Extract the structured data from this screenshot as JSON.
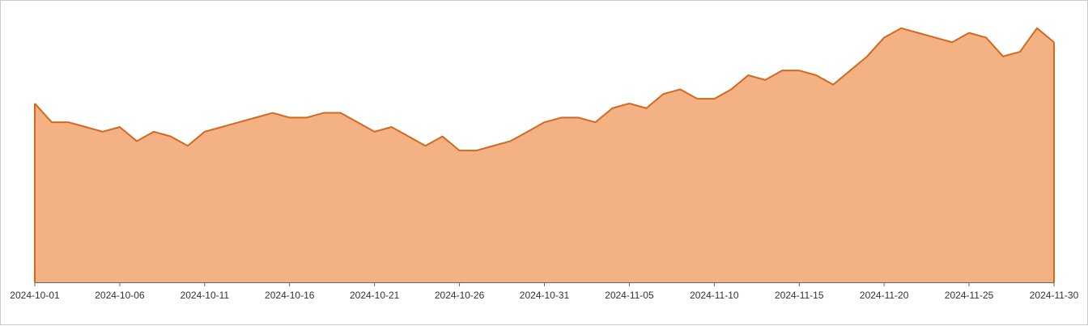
{
  "colors": {
    "area_fill": "#f4b183",
    "line": "#d2691e",
    "axis": "#666666",
    "border": "#cccccc",
    "text": "#333333"
  },
  "chart_data": {
    "type": "area",
    "title": "",
    "xlabel": "",
    "ylabel": "",
    "x_tick_labels": [
      "2024-10-01",
      "2024-10-06",
      "2024-10-11",
      "2024-10-16",
      "2024-10-21",
      "2024-10-26",
      "2024-10-31",
      "2024-11-05",
      "2024-11-10",
      "2024-11-15",
      "2024-11-20",
      "2024-11-25",
      "2024-11-30"
    ],
    "ylim": [
      0,
      55
    ],
    "y_axis_visible": false,
    "grid": false,
    "legend": "none",
    "x": [
      "2024-10-01",
      "2024-10-02",
      "2024-10-03",
      "2024-10-04",
      "2024-10-05",
      "2024-10-06",
      "2024-10-07",
      "2024-10-08",
      "2024-10-09",
      "2024-10-10",
      "2024-10-11",
      "2024-10-12",
      "2024-10-13",
      "2024-10-14",
      "2024-10-15",
      "2024-10-16",
      "2024-10-17",
      "2024-10-18",
      "2024-10-19",
      "2024-10-20",
      "2024-10-21",
      "2024-10-22",
      "2024-10-23",
      "2024-10-24",
      "2024-10-25",
      "2024-10-26",
      "2024-10-27",
      "2024-10-28",
      "2024-10-29",
      "2024-10-30",
      "2024-10-31",
      "2024-11-01",
      "2024-11-02",
      "2024-11-03",
      "2024-11-04",
      "2024-11-05",
      "2024-11-06",
      "2024-11-07",
      "2024-11-08",
      "2024-11-09",
      "2024-11-10",
      "2024-11-11",
      "2024-11-12",
      "2024-11-13",
      "2024-11-14",
      "2024-11-15",
      "2024-11-16",
      "2024-11-17",
      "2024-11-18",
      "2024-11-19",
      "2024-11-20",
      "2024-11-21",
      "2024-11-22",
      "2024-11-23",
      "2024-11-24",
      "2024-11-25",
      "2024-11-26",
      "2024-11-27",
      "2024-11-28",
      "2024-11-29",
      "2024-11-30"
    ],
    "values": [
      38,
      34,
      34,
      33,
      32,
      33,
      30,
      32,
      31,
      29,
      32,
      33,
      34,
      35,
      36,
      35,
      35,
      36,
      36,
      34,
      32,
      33,
      31,
      29,
      31,
      28,
      28,
      29,
      30,
      32,
      34,
      35,
      35,
      34,
      37,
      38,
      37,
      40,
      41,
      39,
      39,
      41,
      44,
      43,
      45,
      45,
      44,
      42,
      45,
      48,
      52,
      54,
      53,
      52,
      51,
      53,
      52,
      48,
      49,
      54,
      51
    ]
  }
}
